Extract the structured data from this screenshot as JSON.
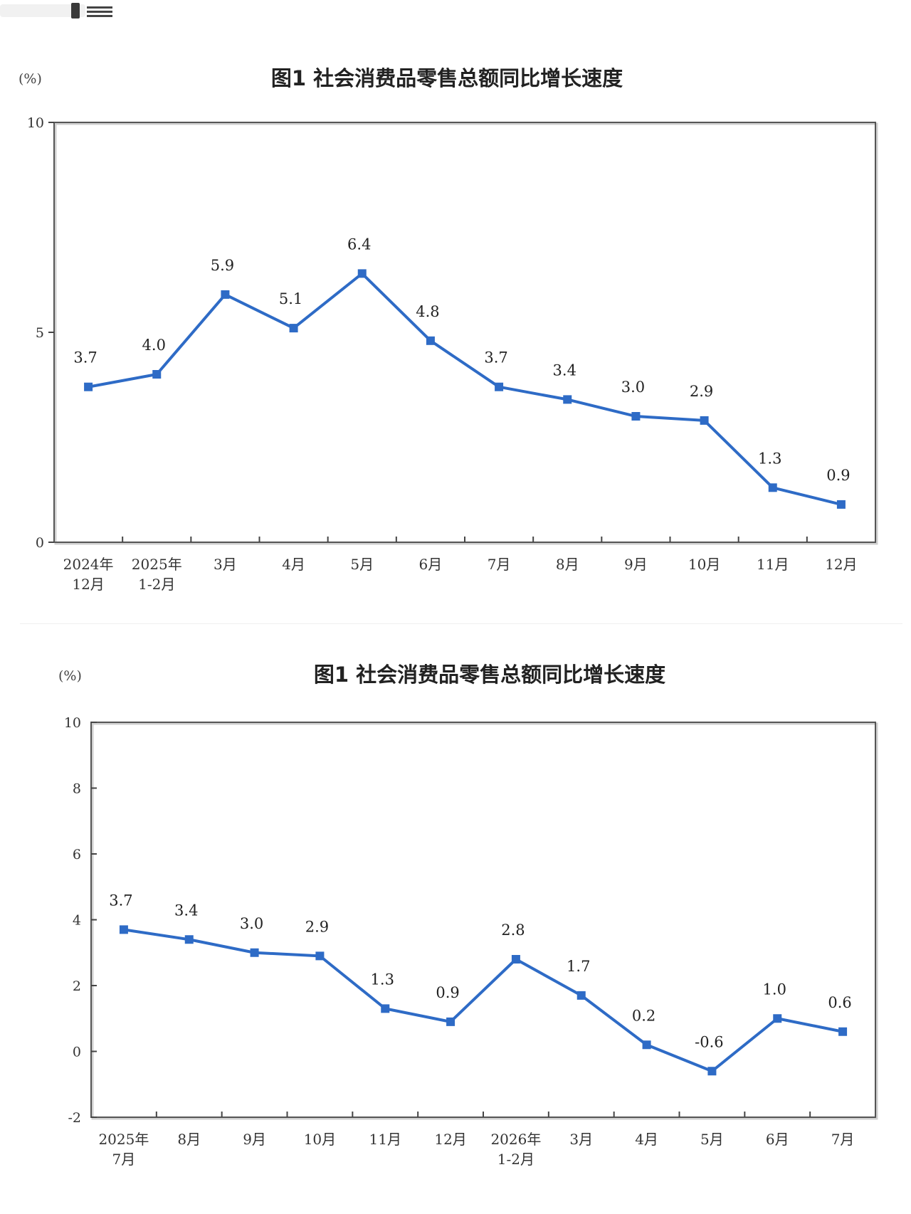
{
  "chart_data": [
    {
      "type": "line",
      "title": "图1  社会消费品零售总额同比增长速度",
      "unit": "(%)",
      "categories": [
        [
          "2024年",
          "12月"
        ],
        [
          "2025年",
          "1-2月"
        ],
        [
          "3月"
        ],
        [
          "4月"
        ],
        [
          "5月"
        ],
        [
          "6月"
        ],
        [
          "7月"
        ],
        [
          "8月"
        ],
        [
          "9月"
        ],
        [
          "10月"
        ],
        [
          "11月"
        ],
        [
          "12月"
        ]
      ],
      "values": [
        3.7,
        4.0,
        5.9,
        5.1,
        6.4,
        4.8,
        3.7,
        3.4,
        3.0,
        2.9,
        1.3,
        0.9
      ],
      "value_labels": [
        "3.7",
        "4.0",
        "5.9",
        "5.1",
        "6.4",
        "4.8",
        "3.7",
        "3.4",
        "3.0",
        "2.9",
        "1.3",
        "0.9"
      ],
      "yticks": [
        0,
        5,
        10
      ],
      "ylim": [
        0,
        10
      ],
      "color": "#2e6bc6",
      "grid": false,
      "legend": false
    },
    {
      "type": "line",
      "title": "图1  社会消费品零售总额同比增长速度",
      "unit": "(%)",
      "categories": [
        [
          "2025年",
          "7月"
        ],
        [
          "8月"
        ],
        [
          "9月"
        ],
        [
          "10月"
        ],
        [
          "11月"
        ],
        [
          "12月"
        ],
        [
          "2026年",
          "1-2月"
        ],
        [
          "3月"
        ],
        [
          "4月"
        ],
        [
          "5月"
        ],
        [
          "6月"
        ],
        [
          "7月"
        ]
      ],
      "values": [
        3.7,
        3.4,
        3.0,
        2.9,
        1.3,
        0.9,
        2.8,
        1.7,
        0.2,
        -0.6,
        1.0,
        0.6
      ],
      "value_labels": [
        "3.7",
        "3.4",
        "3.0",
        "2.9",
        "1.3",
        "0.9",
        "2.8",
        "1.7",
        "0.2",
        "-0.6",
        "1.0",
        "0.6"
      ],
      "yticks": [
        -2,
        0,
        2,
        4,
        6,
        8,
        10
      ],
      "ylim": [
        -2,
        10
      ],
      "color": "#2e6bc6",
      "grid": false,
      "legend": false
    }
  ]
}
